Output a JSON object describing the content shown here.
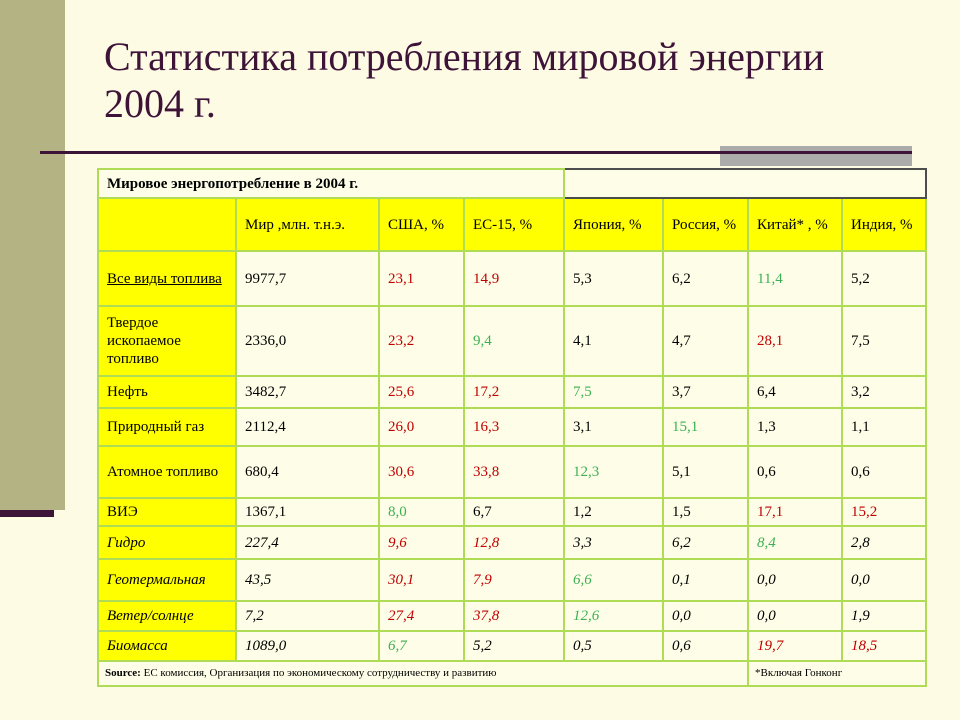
{
  "slide": {
    "title_line1": "Статистика потребления мировой энергии",
    "title_line2": "2004 г."
  },
  "table": {
    "caption": "Мировое энергопотребление в 2004 г.",
    "columns": [
      "",
      "Мир ,млн. т.н.э.",
      "США, %",
      "ЕС-15, %",
      "Япония, %",
      "Россия, %",
      "Китай* , %",
      "Индия, %"
    ],
    "rows": [
      {
        "label": "Все виды топлива",
        "style": "underline",
        "values": [
          "9977,7",
          "23,1",
          "14,9",
          "5,3",
          "6,2",
          "11,4",
          "5,2"
        ],
        "value_colors": [
          "k",
          "r",
          "r",
          "k",
          "k",
          "g",
          "k"
        ]
      },
      {
        "label": "Твердое ископаемое топливо",
        "style": "normal",
        "values": [
          "2336,0",
          "23,2",
          "9,4",
          "4,1",
          "4,7",
          "28,1",
          "7,5"
        ],
        "value_colors": [
          "k",
          "r",
          "g",
          "k",
          "k",
          "r",
          "k"
        ]
      },
      {
        "label": "Нефть",
        "style": "normal",
        "values": [
          "3482,7",
          "25,6",
          "17,2",
          "7,5",
          "3,7",
          "6,4",
          "3,2"
        ],
        "value_colors": [
          "k",
          "r",
          "r",
          "g",
          "k",
          "k",
          "k"
        ]
      },
      {
        "label": "Природный газ",
        "style": "normal",
        "values": [
          "2112,4",
          "26,0",
          "16,3",
          "3,1",
          "15,1",
          "1,3",
          "1,1"
        ],
        "value_colors": [
          "k",
          "r",
          "r",
          "k",
          "g",
          "k",
          "k"
        ]
      },
      {
        "label": "Атомное топливо",
        "style": "normal",
        "values": [
          "680,4",
          "30,6",
          "33,8",
          "12,3",
          "5,1",
          "0,6",
          "0,6"
        ],
        "value_colors": [
          "k",
          "r",
          "r",
          "g",
          "k",
          "k",
          "k"
        ]
      },
      {
        "label": "ВИЭ",
        "style": "normal",
        "values": [
          "1367,1",
          "8,0",
          "6,7",
          "1,2",
          "1,5",
          "17,1",
          "15,2"
        ],
        "value_colors": [
          "k",
          "g",
          "k",
          "k",
          "k",
          "r",
          "r"
        ]
      },
      {
        "label": "Гидро",
        "style": "italic",
        "values": [
          "227,4",
          "9,6",
          "12,8",
          "3,3",
          "6,2",
          "8,4",
          "2,8"
        ],
        "value_colors": [
          "k",
          "r",
          "r",
          "k",
          "k",
          "g",
          "k"
        ]
      },
      {
        "label": "Геотермальная",
        "style": "italic",
        "values": [
          "43,5",
          "30,1",
          "7,9",
          "6,6",
          "0,1",
          "0,0",
          "0,0"
        ],
        "value_colors": [
          "k",
          "r",
          "r",
          "g",
          "k",
          "k",
          "k"
        ]
      },
      {
        "label": "Ветер/солнце",
        "style": "italic",
        "values": [
          "7,2",
          "27,4",
          "37,8",
          "12,6",
          "0,0",
          "0,0",
          "1,9"
        ],
        "value_colors": [
          "k",
          "r",
          "r",
          "g",
          "k",
          "k",
          "k"
        ]
      },
      {
        "label": "Биомасса",
        "style": "italic",
        "values": [
          "1089,0",
          "6,7",
          "5,2",
          "0,5",
          "0,6",
          "19,7",
          "18,5"
        ],
        "value_colors": [
          "k",
          "g",
          "k",
          "k",
          "k",
          "r",
          "r"
        ]
      }
    ],
    "footer": {
      "source_label": "Source:",
      "source_text": " ЕС комиссия, Организация по экономическому сотрудничеству и развитию",
      "note": "*Включая Гонконг"
    }
  },
  "colors": {
    "background": "#FDFBE3",
    "accent_bar": "#B4B384",
    "accent_dash": "#3D1338",
    "title": "#3D1338",
    "rule": "#3D1338",
    "gray_block": "#ABABAB",
    "table_border": "#B0DB57",
    "header_bg": "#FFFF00",
    "cell_bg": "#FEFEE8",
    "value_red": "#C00000",
    "value_green": "#3CB054",
    "value_black": "#000000",
    "corner_border": "#4D4D4D"
  }
}
